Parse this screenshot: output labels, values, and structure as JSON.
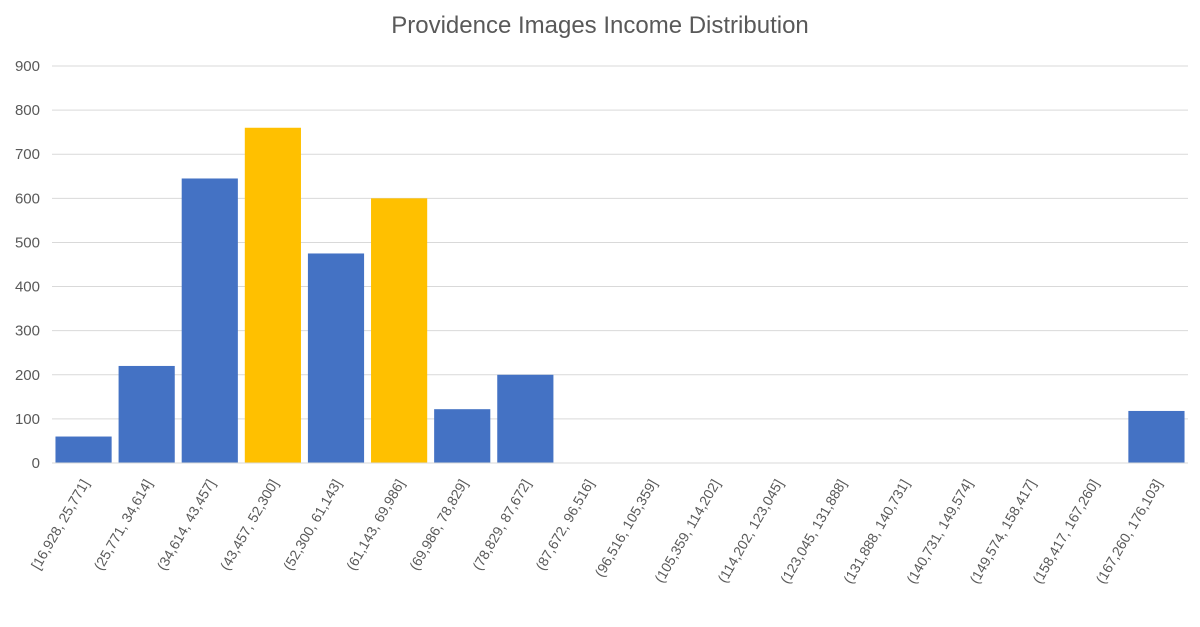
{
  "chart_data": {
    "type": "bar",
    "title": "Providence Images Income Distribution",
    "xlabel": "",
    "ylabel": "",
    "ylim": [
      0,
      900
    ],
    "yticks": [
      0,
      100,
      200,
      300,
      400,
      500,
      600,
      700,
      800,
      900
    ],
    "grid": true,
    "categories": [
      "[16,928, 25,771]",
      "(25,771, 34,614]",
      "(34,614, 43,457]",
      "(43,457, 52,300]",
      "(52,300, 61,143]",
      "(61,143, 69,986]",
      "(69,986, 78,829]",
      "(78,829, 87,672]",
      "(87,672, 96,516]",
      "(96,516, 105,359]",
      "(105,359, 114,202]",
      "(114,202, 123,045]",
      "(123,045, 131,888]",
      "(131,888, 140,731]",
      "(140,731, 149,574]",
      "(149,574, 158,417]",
      "(158,417, 167,260]",
      "(167,260, 176,103]"
    ],
    "values": [
      60,
      220,
      645,
      760,
      475,
      600,
      122,
      200,
      0,
      0,
      0,
      0,
      0,
      0,
      0,
      0,
      0,
      118
    ],
    "bar_colors": [
      "#4472C4",
      "#4472C4",
      "#4472C4",
      "#FFC000",
      "#4472C4",
      "#FFC000",
      "#4472C4",
      "#4472C4",
      "#4472C4",
      "#4472C4",
      "#4472C4",
      "#4472C4",
      "#4472C4",
      "#4472C4",
      "#4472C4",
      "#4472C4",
      "#4472C4",
      "#4472C4"
    ],
    "colors": {
      "primary": "#4472C4",
      "highlight": "#FFC000",
      "grid": "#D9D9D9",
      "text": "#595959"
    }
  }
}
